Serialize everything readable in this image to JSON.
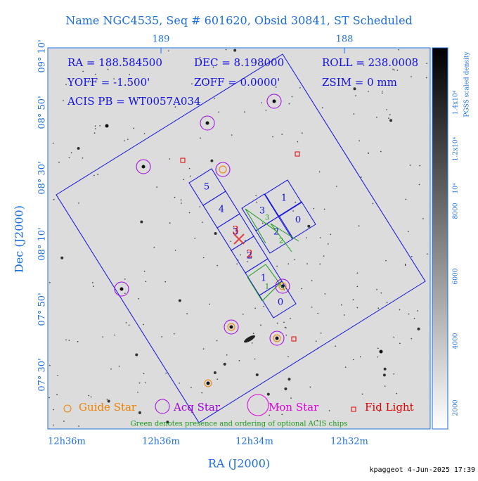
{
  "title": "Name NGC4535, Seq # 601620, Obsid 30841, ST Scheduled",
  "info": [
    "RA = 188.584500",
    "DEC = 8.198000",
    "ROLL = 238.0008",
    "YOFF = -1.500'",
    "ZOFF = 0.0000'",
    "ZSIM = 0 mm",
    "ACIS PB = WT0057A034"
  ],
  "top_ticks": [
    "189",
    "188"
  ],
  "bottom_ticks": [
    "12h36m",
    "12h36m",
    "12h34m",
    "12h32m"
  ],
  "left_ticks": [
    "09° 10'",
    "08° 50'",
    "08° 30'",
    "08° 10'",
    "07° 50'",
    "07° 30'"
  ],
  "x_label": "RA (J2000)",
  "y_label": "Dec (J2000)",
  "chip_labels": [
    "5",
    "4",
    "3",
    "2",
    "1",
    "0",
    "1",
    "0",
    "3",
    "2",
    "3",
    "2",
    "3",
    "2",
    "1"
  ],
  "legend": [
    "Guide Star",
    "Acq Star",
    "Mon Star",
    "Fid Light"
  ],
  "note": "Green denotes presence and ordering of optional ACIS chips",
  "colorbar": {
    "label": "PGSS scaled density",
    "ticks": [
      "2000",
      "4000",
      "6000",
      "8000",
      "10⁴",
      "1.2x10⁴",
      "1.4x10⁴"
    ]
  },
  "footer": "kpaggeot  4-Jun-2025 17:39"
}
